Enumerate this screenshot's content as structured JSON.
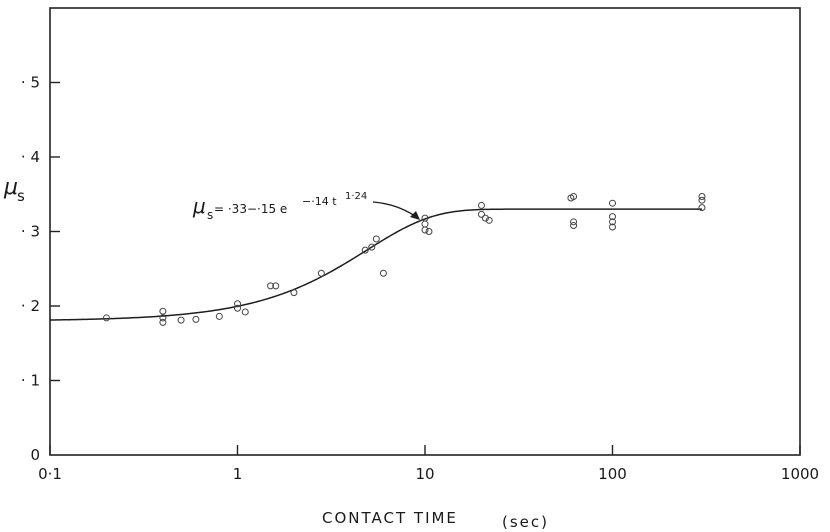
{
  "chart_data": {
    "type": "scatter",
    "xscale": "log",
    "xlim": [
      0.1,
      1000
    ],
    "ylim": [
      0,
      0.6
    ],
    "x_ticks": [
      0.1,
      1,
      10,
      100,
      1000
    ],
    "x_tick_labels": [
      "0·1",
      "1",
      "10",
      "100",
      "1000"
    ],
    "y_ticks": [
      0,
      0.1,
      0.2,
      0.3,
      0.4,
      0.5
    ],
    "y_tick_labels": [
      "0",
      "· 1",
      "· 2",
      "· 3",
      "· 4",
      "· 5"
    ],
    "xlabel": "CONTACT TIME",
    "xlabel_unit": "(sec)",
    "ylabel_symbol": "μ",
    "ylabel_subscript": "s",
    "grid": false,
    "fit": {
      "a": 0.33,
      "b": 0.15,
      "c": 0.14,
      "n": 1.24,
      "label_symbol": "μ",
      "label_subscript": "s",
      "label_main": " = ·33−·15 e",
      "label_exp": "−·14 t",
      "label_exp_power": "1·24"
    },
    "points": [
      [
        0.2,
        0.184
      ],
      [
        0.4,
        0.193
      ],
      [
        0.4,
        0.178
      ],
      [
        0.4,
        0.184
      ],
      [
        0.5,
        0.181
      ],
      [
        0.6,
        0.182
      ],
      [
        0.8,
        0.186
      ],
      [
        1.0,
        0.203
      ],
      [
        1.0,
        0.197
      ],
      [
        1.1,
        0.192
      ],
      [
        1.5,
        0.227
      ],
      [
        1.6,
        0.227
      ],
      [
        2.0,
        0.218
      ],
      [
        2.8,
        0.244
      ],
      [
        4.8,
        0.275
      ],
      [
        5.2,
        0.279
      ],
      [
        5.5,
        0.29
      ],
      [
        6.0,
        0.244
      ],
      [
        10,
        0.318
      ],
      [
        10,
        0.31
      ],
      [
        10,
        0.302
      ],
      [
        10.5,
        0.3
      ],
      [
        20,
        0.335
      ],
      [
        20,
        0.323
      ],
      [
        21,
        0.318
      ],
      [
        22,
        0.315
      ],
      [
        60,
        0.345
      ],
      [
        62,
        0.347
      ],
      [
        62,
        0.313
      ],
      [
        62,
        0.308
      ],
      [
        100,
        0.338
      ],
      [
        100,
        0.32
      ],
      [
        100,
        0.313
      ],
      [
        100,
        0.306
      ],
      [
        300,
        0.347
      ],
      [
        300,
        0.342
      ],
      [
        300,
        0.332
      ]
    ]
  }
}
